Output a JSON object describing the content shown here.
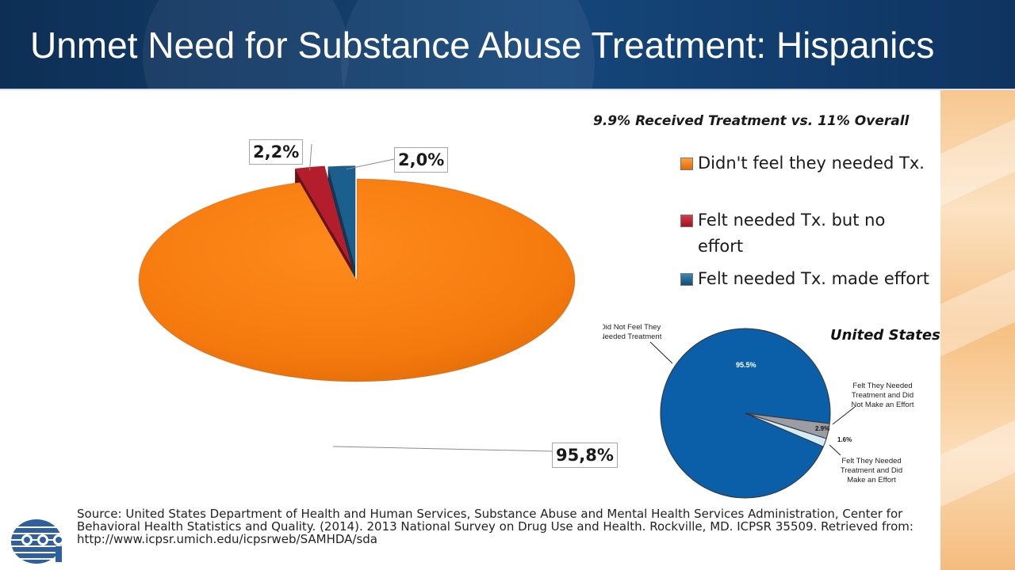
{
  "header": {
    "title": "Unmet Need for Substance Abuse Treatment: Hispanics"
  },
  "chart_data": [
    {
      "type": "pie",
      "title": "9.9% Received Treatment vs. 11% Overall",
      "categories": [
        "Didn't feel they needed Tx.",
        "Felt needed Tx. but no effort",
        "Felt needed Tx. made effort"
      ],
      "values": [
        95.8,
        2.2,
        2.0
      ],
      "data_labels": [
        "95,8%",
        "2,2%",
        "2,0%"
      ],
      "colors": [
        "#f07a10",
        "#b41e2c",
        "#1a5f8e"
      ],
      "legend": {
        "position": "right",
        "items": [
          "Didn't feel they needed Tx.",
          "Felt needed Tx. but no effort",
          "Felt needed Tx. made effort"
        ]
      }
    },
    {
      "type": "pie",
      "title": "United States",
      "categories": [
        "Did Not Feel They Needed Treatment",
        "Felt They Needed Treatment and Did Not Make an Effort",
        "Felt They Needed Treatment and Did Make an Effort"
      ],
      "values": [
        95.5,
        2.9,
        1.6
      ],
      "data_labels": [
        "95.5%",
        "2.9%",
        "1.6%"
      ],
      "colors": [
        "#0b5fa8",
        "#9c9ca4",
        "#d4ecf4"
      ],
      "callouts": [
        [
          "Did Not Feel They",
          "Needed Treatment"
        ],
        [
          "Felt They Needed",
          "Treatment and Did",
          "Not Make an Effort"
        ],
        [
          "Felt They Needed",
          "Treatment and Did",
          "Make an Effort"
        ]
      ]
    }
  ],
  "source": {
    "text": "Source: United States Department of Health and Human Services, Substance Abuse and Mental Health Services Administration, Center for Behavioral Health Statistics and Quality. (2014). 2013 National Survey on Drug Use and Health. Rockville, MD. ICPSR 35509. Retrieved from: http://www.icpsr.umich.edu/icpsrweb/SAMHDA/sda"
  },
  "logo": {
    "icon": "organization-logo-icon"
  }
}
